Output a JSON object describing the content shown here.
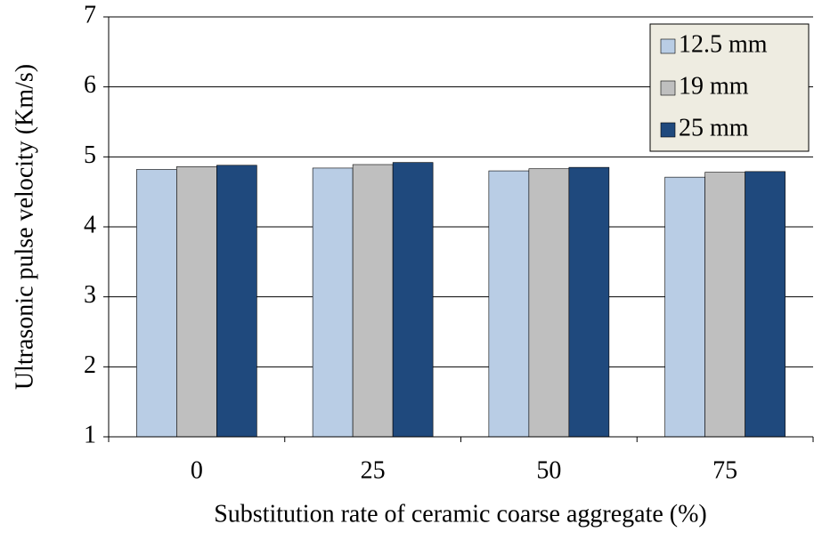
{
  "chart_data": {
    "type": "bar",
    "xlabel": "Substitution rate of ceramic coarse aggregate (%)",
    "ylabel": "Ultrasonic pulse velocity (Km/s)",
    "categories": [
      "0",
      "25",
      "50",
      "75"
    ],
    "series": [
      {
        "name": "12.5 mm",
        "color": "#b9cde5",
        "values": [
          4.82,
          4.84,
          4.8,
          4.71
        ]
      },
      {
        "name": "19 mm",
        "color": "#bfbfbf",
        "values": [
          4.86,
          4.89,
          4.83,
          4.78
        ]
      },
      {
        "name": "25 mm",
        "color": "#1f497d",
        "values": [
          4.88,
          4.92,
          4.85,
          4.79
        ]
      }
    ],
    "ylim": [
      1,
      7
    ],
    "yticks": [
      1,
      2,
      3,
      4,
      5,
      6,
      7
    ],
    "grid": true,
    "legend": "upper right"
  }
}
